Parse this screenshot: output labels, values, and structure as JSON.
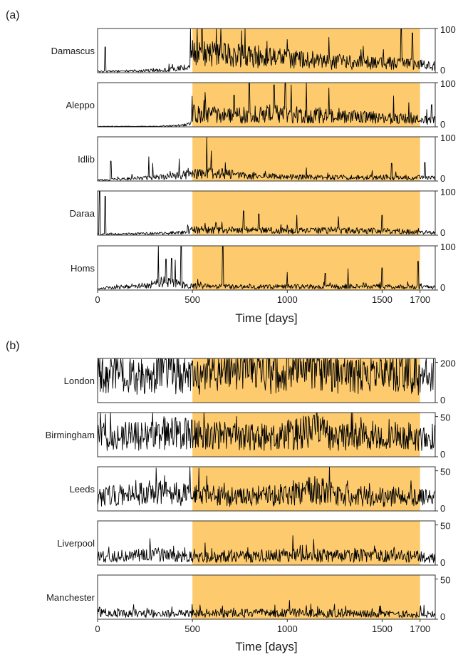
{
  "chart_data": [
    {
      "type": "line",
      "panel_label": "(a)",
      "xlabel": "Time [days]",
      "xlim": [
        0,
        1780
      ],
      "xticks": [
        0,
        500,
        1000,
        1500,
        1700
      ],
      "xtick_labels": [
        "0",
        "500",
        "1000",
        "1500",
        "1700"
      ],
      "highlight_span": [
        500,
        1700
      ],
      "highlight_color": "#fdcb6e",
      "line_color": "#000000",
      "y_axis_side": "right",
      "series": [
        {
          "name": "Damascus",
          "ylim": [
            0,
            100
          ],
          "yticks": [
            0,
            100
          ],
          "ytick_labels": [
            "0",
            "100"
          ],
          "profile": [
            [
              0,
              3
            ],
            [
              60,
              3
            ],
            [
              300,
              5
            ],
            [
              420,
              8
            ],
            [
              490,
              16
            ],
            [
              500,
              45
            ],
            [
              700,
              40
            ],
            [
              1000,
              32
            ],
            [
              1200,
              24
            ],
            [
              1500,
              22
            ],
            [
              1700,
              18
            ],
            [
              1780,
              15
            ]
          ],
          "spikes": [
            [
              40,
              58
            ],
            [
              490,
              100
            ],
            [
              550,
              100
            ],
            [
              650,
              100
            ],
            [
              760,
              95
            ],
            [
              1000,
              75
            ],
            [
              1220,
              80
            ],
            [
              1400,
              60
            ],
            [
              1600,
              100
            ],
            [
              1660,
              90
            ]
          ]
        },
        {
          "name": "Aleppo",
          "ylim": [
            0,
            100
          ],
          "yticks": [
            0,
            100
          ],
          "ytick_labels": [
            "0",
            "100"
          ],
          "profile": [
            [
              0,
              1
            ],
            [
              300,
              1
            ],
            [
              420,
              3
            ],
            [
              490,
              6
            ],
            [
              500,
              30
            ],
            [
              700,
              25
            ],
            [
              900,
              30
            ],
            [
              1200,
              24
            ],
            [
              1500,
              20
            ],
            [
              1780,
              14
            ]
          ],
          "spikes": [
            [
              560,
              60
            ],
            [
              720,
              72
            ],
            [
              800,
              100
            ],
            [
              930,
              95
            ],
            [
              990,
              100
            ],
            [
              1020,
              95
            ],
            [
              1100,
              100
            ],
            [
              1220,
              88
            ],
            [
              1560,
              70
            ],
            [
              1640,
              55
            ],
            [
              1760,
              50
            ]
          ]
        },
        {
          "name": "Idlib",
          "ylim": [
            0,
            100
          ],
          "yticks": [
            0,
            100
          ],
          "ytick_labels": [
            "0",
            "100"
          ],
          "profile": [
            [
              0,
              2
            ],
            [
              200,
              6
            ],
            [
              400,
              11
            ],
            [
              500,
              16
            ],
            [
              600,
              18
            ],
            [
              800,
              12
            ],
            [
              1000,
              9
            ],
            [
              1200,
              8
            ],
            [
              1500,
              9
            ],
            [
              1780,
              7
            ]
          ],
          "spikes": [
            [
              70,
              45
            ],
            [
              270,
              55
            ],
            [
              290,
              40
            ],
            [
              430,
              50
            ],
            [
              575,
              100
            ],
            [
              600,
              68
            ],
            [
              1100,
              30
            ],
            [
              1550,
              40
            ],
            [
              1725,
              42
            ]
          ]
        },
        {
          "name": "Daraa",
          "ylim": [
            0,
            100
          ],
          "yticks": [
            0,
            100
          ],
          "ytick_labels": [
            "0",
            "100"
          ],
          "profile": [
            [
              0,
              2
            ],
            [
              300,
              4
            ],
            [
              460,
              6
            ],
            [
              500,
              12
            ],
            [
              700,
              12
            ],
            [
              1000,
              10
            ],
            [
              1300,
              11
            ],
            [
              1500,
              10
            ],
            [
              1780,
              6
            ]
          ],
          "spikes": [
            [
              10,
              100
            ],
            [
              40,
              88
            ],
            [
              770,
              55
            ],
            [
              850,
              48
            ],
            [
              1050,
              45
            ],
            [
              1270,
              42
            ],
            [
              1500,
              45
            ]
          ]
        },
        {
          "name": "Homs",
          "ylim": [
            0,
            100
          ],
          "yticks": [
            0,
            100
          ],
          "ytick_labels": [
            "0",
            "100"
          ],
          "profile": [
            [
              0,
              4
            ],
            [
              250,
              10
            ],
            [
              350,
              18
            ],
            [
              450,
              12
            ],
            [
              500,
              9
            ],
            [
              800,
              7
            ],
            [
              1100,
              8
            ],
            [
              1500,
              8
            ],
            [
              1780,
              6
            ]
          ],
          "spikes": [
            [
              320,
              100
            ],
            [
              360,
              70
            ],
            [
              390,
              72
            ],
            [
              410,
              68
            ],
            [
              440,
              100
            ],
            [
              660,
              100
            ],
            [
              1000,
              40
            ],
            [
              1200,
              38
            ],
            [
              1320,
              48
            ],
            [
              1500,
              50
            ],
            [
              1690,
              65
            ]
          ]
        }
      ]
    },
    {
      "type": "line",
      "panel_label": "(b)",
      "xlabel": "Time [days]",
      "xlim": [
        0,
        1780
      ],
      "xticks": [
        0,
        500,
        1000,
        1500,
        1700
      ],
      "xtick_labels": [
        "0",
        "500",
        "1000",
        "1500",
        "1700"
      ],
      "highlight_span": [
        500,
        1700
      ],
      "highlight_color": "#fdcb6e",
      "line_color": "#000000",
      "y_axis_side": "right",
      "series": [
        {
          "name": "London",
          "ylim": [
            0,
            220
          ],
          "yticks": [
            0,
            200
          ],
          "ytick_labels": [
            "0",
            "200"
          ],
          "profile": [
            [
              0,
              160
            ],
            [
              100,
              150
            ],
            [
              250,
              110
            ],
            [
              330,
              145
            ],
            [
              370,
              190
            ],
            [
              420,
              135
            ],
            [
              550,
              125
            ],
            [
              700,
              150
            ],
            [
              780,
              180
            ],
            [
              950,
              130
            ],
            [
              1100,
              170
            ],
            [
              1200,
              175
            ],
            [
              1350,
              125
            ],
            [
              1500,
              145
            ],
            [
              1600,
              165
            ],
            [
              1700,
              125
            ],
            [
              1780,
              155
            ]
          ],
          "spikes": [
            [
              360,
              215
            ],
            [
              775,
              200
            ],
            [
              1150,
              195
            ]
          ]
        },
        {
          "name": "Birmingham",
          "ylim": [
            0,
            55
          ],
          "yticks": [
            0,
            50
          ],
          "ytick_labels": [
            "0",
            "50"
          ],
          "profile": [
            [
              0,
              25
            ],
            [
              300,
              26
            ],
            [
              400,
              30
            ],
            [
              600,
              26
            ],
            [
              900,
              24
            ],
            [
              1150,
              32
            ],
            [
              1300,
              24
            ],
            [
              1500,
              27
            ],
            [
              1780,
              24
            ]
          ],
          "spikes": [
            [
              350,
              50
            ],
            [
              1140,
              52
            ],
            [
              1210,
              45
            ]
          ]
        },
        {
          "name": "Leeds",
          "ylim": [
            0,
            55
          ],
          "yticks": [
            0,
            50
          ],
          "ytick_labels": [
            "0",
            "50"
          ],
          "profile": [
            [
              0,
              18
            ],
            [
              200,
              20
            ],
            [
              350,
              26
            ],
            [
              450,
              20
            ],
            [
              700,
              18
            ],
            [
              1000,
              20
            ],
            [
              1150,
              27
            ],
            [
              1250,
              20
            ],
            [
              1500,
              17
            ],
            [
              1780,
              16
            ]
          ],
          "spikes": [
            [
              360,
              36
            ],
            [
              1100,
              32
            ],
            [
              1190,
              40
            ],
            [
              1560,
              30
            ]
          ]
        },
        {
          "name": "Liverpool",
          "ylim": [
            0,
            55
          ],
          "yticks": [
            0,
            50
          ],
          "ytick_labels": [
            "0",
            "50"
          ],
          "profile": [
            [
              0,
              10
            ],
            [
              300,
              13
            ],
            [
              500,
              10
            ],
            [
              800,
              11
            ],
            [
              1100,
              13
            ],
            [
              1300,
              11
            ],
            [
              1500,
              12
            ],
            [
              1780,
              10
            ]
          ],
          "spikes": [
            [
              1100,
              25
            ],
            [
              1460,
              24
            ]
          ]
        },
        {
          "name": "Manchester",
          "ylim": [
            0,
            55
          ],
          "yticks": [
            0,
            50
          ],
          "ytick_labels": [
            "0",
            "50"
          ],
          "profile": [
            [
              0,
              8
            ],
            [
              300,
              7
            ],
            [
              600,
              7
            ],
            [
              1000,
              8
            ],
            [
              1400,
              7
            ],
            [
              1780,
              6
            ]
          ],
          "spikes": [
            [
              10,
              15
            ],
            [
              1100,
              17
            ],
            [
              1160,
              16
            ]
          ]
        }
      ]
    }
  ]
}
